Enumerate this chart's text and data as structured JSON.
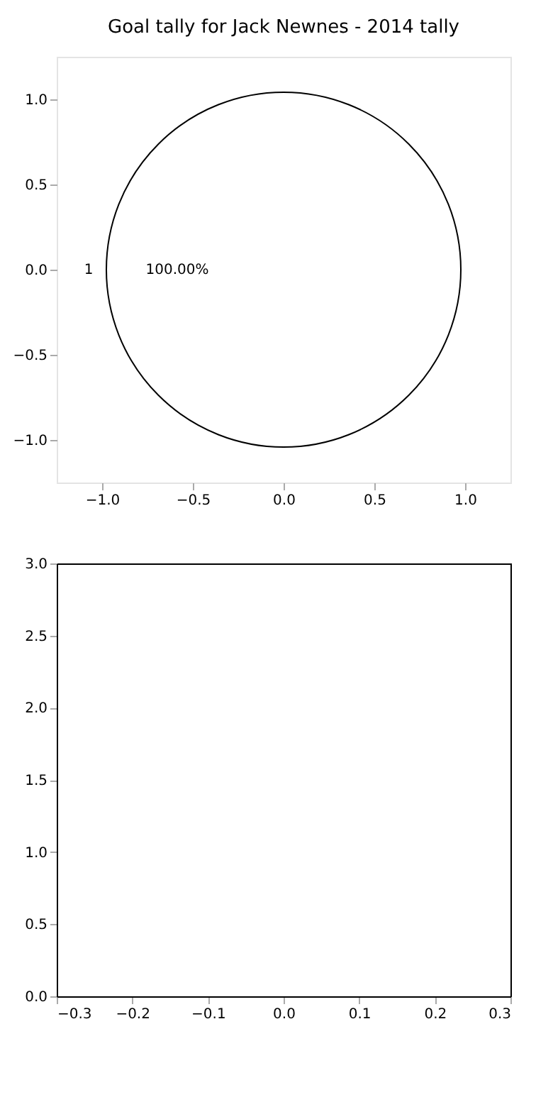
{
  "chart_data": [
    {
      "type": "pie",
      "title": "Goal tally for Jack Newnes - 2014 tally",
      "categories": [
        "1"
      ],
      "values": [
        100
      ],
      "colors": [
        "#ffffff"
      ],
      "value_labels": [
        "100.00%"
      ],
      "legend": false
    },
    {
      "type": "line",
      "xlim": [
        -1.25,
        1.25
      ],
      "xticks": [
        {
          "value": -1,
          "label": "−1.0"
        },
        {
          "value": -0.5,
          "label": "−0.5"
        },
        {
          "value": 0,
          "label": "0.0"
        },
        {
          "value": 0.5,
          "label": "0.5"
        },
        {
          "value": 1,
          "label": "1.0"
        }
      ],
      "ylim": [
        -1.25,
        1.25
      ],
      "yticks": [
        {
          "value": -1,
          "label": "−1.0"
        },
        {
          "value": -0.5,
          "label": "−0.5"
        },
        {
          "value": 0,
          "label": "0.0"
        },
        {
          "value": 0.5,
          "label": "0.5"
        },
        {
          "value": 1,
          "label": "1.0"
        }
      ],
      "grid": false,
      "legend": false
    },
    {
      "type": "line",
      "xlim": [
        -0.3,
        0.3
      ],
      "xticks": [
        {
          "value": -0.3,
          "label": "−0.3"
        },
        {
          "value": -0.2,
          "label": "−0.2"
        },
        {
          "value": -0.1,
          "label": "−0.1"
        },
        {
          "value": 0,
          "label": "0.0"
        },
        {
          "value": 0.1,
          "label": "0.1"
        },
        {
          "value": 0.2,
          "label": "0.2"
        },
        {
          "value": 0.3,
          "label": "0.3"
        }
      ],
      "ylim": [
        0,
        3
      ],
      "yticks": [
        {
          "value": 0,
          "label": "0.0"
        },
        {
          "value": 0.5,
          "label": "0.5"
        },
        {
          "value": 1,
          "label": "1.0"
        },
        {
          "value": 1.5,
          "label": "1.5"
        },
        {
          "value": 2,
          "label": "2.0"
        },
        {
          "value": 2.5,
          "label": "2.5"
        },
        {
          "value": 3,
          "label": "3.0"
        }
      ],
      "grid": false,
      "legend": false
    }
  ]
}
